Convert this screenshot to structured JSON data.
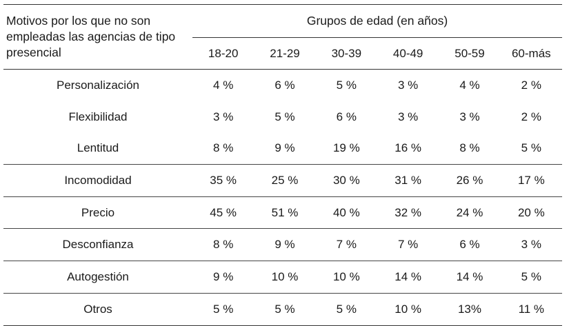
{
  "table": {
    "corner_header": "Motivos por los que no son empleadas las agencias de tipo presencial",
    "group_header": "Grupos de edad (en años)",
    "age_groups": [
      "18-20",
      "21-29",
      "30-39",
      "40-49",
      "50-59",
      "60-más"
    ],
    "rows": [
      {
        "motivo": "Personalización",
        "values": [
          "4 %",
          "6 %",
          "5 %",
          "3 %",
          "4 %",
          "2 %"
        ]
      },
      {
        "motivo": "Flexibilidad",
        "values": [
          "3 %",
          "5 %",
          "6 %",
          "3 %",
          "3 %",
          "2 %"
        ]
      },
      {
        "motivo": "Lentitud",
        "values": [
          "8 %",
          "9 %",
          "19 %",
          "16 %",
          "8 %",
          "5 %"
        ]
      },
      {
        "motivo": "Incomodidad",
        "values": [
          "35 %",
          "25 %",
          "30 %",
          "31 %",
          "26 %",
          "17 %"
        ]
      },
      {
        "motivo": "Precio",
        "values": [
          "45 %",
          "51 %",
          "40 %",
          "32 %",
          "24 %",
          "20 %"
        ]
      },
      {
        "motivo": "Desconfianza",
        "values": [
          "8 %",
          "9 %",
          "7 %",
          "7 %",
          "6 %",
          "3 %"
        ]
      },
      {
        "motivo": "Autogestión",
        "values": [
          "9 %",
          "10 %",
          "10 %",
          "14 %",
          "14 %",
          "5 %"
        ]
      },
      {
        "motivo": "Otros",
        "values": [
          "5 %",
          "5 %",
          "5 %",
          "10 %",
          "13%",
          "11 %"
        ]
      }
    ]
  }
}
